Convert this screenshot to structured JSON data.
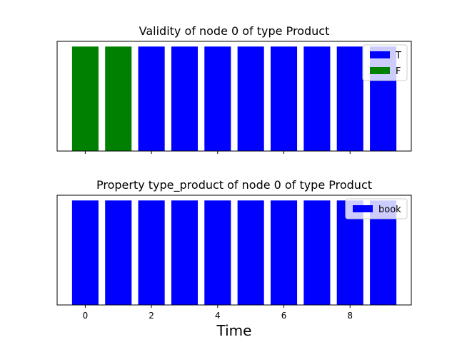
{
  "chart_data": [
    {
      "type": "bar",
      "title": "Validity of node 0 of type Product",
      "x": [
        0,
        1,
        2,
        3,
        4,
        5,
        6,
        7,
        8,
        9
      ],
      "series": [
        {
          "name": "T",
          "color": "#0000ff",
          "values": [
            0,
            0,
            1,
            1,
            1,
            1,
            1,
            1,
            1,
            1
          ]
        },
        {
          "name": "F",
          "color": "#008000",
          "values": [
            1,
            1,
            0,
            0,
            0,
            0,
            0,
            0,
            0,
            0
          ]
        }
      ],
      "ylim": [
        0,
        1.05
      ],
      "xlim": [
        -0.85,
        9.85
      ],
      "show_y_ticks": false,
      "show_x_tick_labels": false,
      "xticks": [
        0,
        2,
        4,
        6,
        8
      ],
      "legend_loc": "upper right"
    },
    {
      "type": "bar",
      "title": "Property type_product of node 0 of type Product",
      "x": [
        0,
        1,
        2,
        3,
        4,
        5,
        6,
        7,
        8,
        9
      ],
      "series": [
        {
          "name": "book",
          "color": "#0000ff",
          "values": [
            1,
            1,
            1,
            1,
            1,
            1,
            1,
            1,
            1,
            1
          ]
        }
      ],
      "ylim": [
        0,
        1.05
      ],
      "xlim": [
        -0.85,
        9.85
      ],
      "show_y_ticks": false,
      "show_x_tick_labels": true,
      "xticks": [
        0,
        2,
        4,
        6,
        8
      ],
      "xticklabels": [
        "0",
        "2",
        "4",
        "6",
        "8"
      ],
      "xlabel": "Time",
      "legend_loc": "upper right"
    }
  ]
}
